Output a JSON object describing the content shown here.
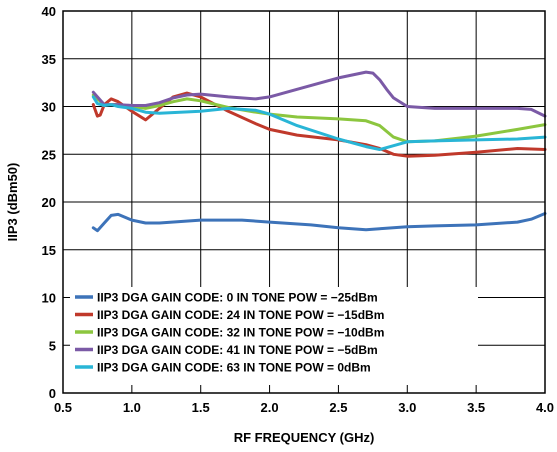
{
  "chart_data": {
    "type": "line",
    "title": "",
    "xlabel": "RF FREQUENCY (GHz)",
    "ylabel": "IIP3 (dBm50)",
    "xlim": [
      0.5,
      4.0
    ],
    "ylim": [
      0,
      40
    ],
    "xticks": [
      0.5,
      1.0,
      1.5,
      2.0,
      2.5,
      3.0,
      3.5,
      4.0
    ],
    "xtick_labels": [
      "0.5",
      "1.0",
      "1.5",
      "2.0",
      "2.5",
      "3.0",
      "3.5",
      "4.0"
    ],
    "yticks": [
      0,
      5,
      10,
      15,
      20,
      25,
      30,
      35,
      40
    ],
    "ytick_labels": [
      "0",
      "5",
      "10",
      "15",
      "20",
      "25",
      "30",
      "35",
      "40"
    ],
    "grid": true,
    "legend_position": "bottom-left",
    "series": [
      {
        "name": "IIP3 DGA GAIN CODE: 0 IN TONE POW = −25dBm",
        "color": "#3d73b9",
        "x": [
          0.72,
          0.75,
          0.8,
          0.85,
          0.9,
          1.0,
          1.1,
          1.2,
          1.5,
          1.8,
          2.0,
          2.3,
          2.5,
          2.7,
          2.8,
          3.0,
          3.2,
          3.5,
          3.8,
          3.9,
          4.0
        ],
        "y": [
          17.3,
          17.0,
          17.8,
          18.6,
          18.7,
          18.1,
          17.8,
          17.8,
          18.1,
          18.1,
          17.9,
          17.6,
          17.3,
          17.1,
          17.2,
          17.4,
          17.5,
          17.6,
          17.9,
          18.2,
          18.8
        ]
      },
      {
        "name": "IIP3 DGA GAIN CODE: 24 IN TONE POW = −15dBm",
        "color": "#c0392b",
        "x": [
          0.72,
          0.75,
          0.77,
          0.8,
          0.85,
          0.9,
          1.0,
          1.1,
          1.2,
          1.3,
          1.4,
          1.5,
          1.7,
          1.9,
          2.0,
          2.2,
          2.5,
          2.7,
          2.8,
          2.9,
          3.0,
          3.2,
          3.5,
          3.8,
          4.0
        ],
        "y": [
          30.2,
          29.0,
          29.1,
          30.2,
          30.8,
          30.5,
          29.5,
          28.6,
          29.8,
          31.0,
          31.4,
          31.0,
          29.5,
          28.2,
          27.6,
          27.0,
          26.5,
          26.0,
          25.6,
          25.0,
          24.8,
          24.9,
          25.2,
          25.6,
          25.5
        ]
      },
      {
        "name": "IIP3 DGA GAIN CODE: 32 IN TONE POW = −10dBm",
        "color": "#8cc63f",
        "x": [
          0.72,
          0.75,
          0.8,
          0.9,
          1.0,
          1.1,
          1.2,
          1.3,
          1.4,
          1.5,
          1.7,
          1.9,
          2.0,
          2.2,
          2.5,
          2.7,
          2.8,
          2.9,
          3.0,
          3.2,
          3.5,
          3.8,
          4.0
        ],
        "y": [
          31.2,
          30.8,
          30.2,
          30.2,
          30.0,
          29.8,
          30.1,
          30.5,
          30.8,
          30.6,
          29.9,
          29.4,
          29.2,
          28.9,
          28.7,
          28.5,
          28.0,
          26.8,
          26.3,
          26.4,
          26.9,
          27.6,
          28.1
        ]
      },
      {
        "name": "IIP3 DGA GAIN CODE: 41 IN TONE POW = −5dBm",
        "color": "#7b5aa6",
        "x": [
          0.72,
          0.75,
          0.8,
          0.9,
          1.0,
          1.1,
          1.2,
          1.3,
          1.4,
          1.5,
          1.7,
          1.9,
          2.0,
          2.2,
          2.4,
          2.5,
          2.6,
          2.7,
          2.75,
          2.8,
          2.85,
          2.9,
          3.0,
          3.2,
          3.5,
          3.8,
          3.9,
          4.0
        ],
        "y": [
          31.5,
          31.0,
          30.2,
          30.2,
          30.1,
          30.1,
          30.4,
          30.9,
          31.2,
          31.3,
          31.0,
          30.8,
          31.0,
          31.8,
          32.6,
          33.0,
          33.3,
          33.6,
          33.5,
          32.8,
          31.8,
          30.9,
          30.0,
          29.8,
          29.8,
          29.8,
          29.7,
          29.0
        ]
      },
      {
        "name": "IIP3 DGA GAIN CODE: 63  IN TONE POW = 0dBm",
        "color": "#29b5d6",
        "x": [
          0.72,
          0.75,
          0.8,
          0.85,
          0.9,
          1.0,
          1.1,
          1.2,
          1.5,
          1.7,
          1.9,
          2.0,
          2.2,
          2.5,
          2.7,
          2.8,
          2.9,
          3.0,
          3.2,
          3.5,
          3.8,
          4.0
        ],
        "y": [
          31.0,
          30.3,
          30.1,
          30.2,
          30.0,
          29.8,
          29.4,
          29.3,
          29.5,
          29.8,
          29.6,
          29.2,
          28.0,
          26.6,
          25.8,
          25.5,
          25.9,
          26.3,
          26.4,
          26.5,
          26.6,
          26.8
        ]
      }
    ]
  }
}
